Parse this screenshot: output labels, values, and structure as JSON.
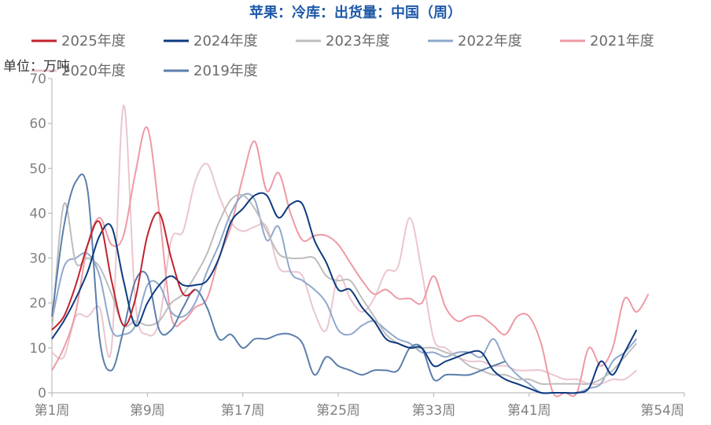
{
  "chart_data": {
    "type": "line",
    "title": "苹果：冷库：出货量：中国（周）",
    "title_color": "#1f5aa8",
    "unit_label": "单位：万吨",
    "ylim": [
      0,
      70
    ],
    "yticks": [
      0,
      10,
      20,
      30,
      40,
      50,
      60,
      70
    ],
    "xlim": [
      1,
      54
    ],
    "xticks": [
      {
        "week": 1,
        "label": "第1周"
      },
      {
        "week": 9,
        "label": "第9周"
      },
      {
        "week": 17,
        "label": "第17周"
      },
      {
        "week": 25,
        "label": "第25周"
      },
      {
        "week": 33,
        "label": "第33周"
      },
      {
        "week": 41,
        "label": "第41周"
      },
      {
        "week": 54,
        "label": "第54周"
      }
    ],
    "grid": false,
    "legend_position": "top",
    "series": [
      {
        "name": "2025年度",
        "color": "#c0222c",
        "values": [
          14,
          17,
          24,
          33,
          38,
          25,
          15,
          21,
          35,
          40,
          30,
          22,
          23
        ]
      },
      {
        "name": "2024年度",
        "color": "#0d3a7f",
        "values": [
          12,
          16,
          21,
          27,
          35,
          37,
          25,
          15,
          20,
          24,
          26,
          24,
          24,
          25,
          30,
          38,
          41,
          44,
          44,
          39,
          42,
          42,
          34,
          29,
          23,
          23,
          19,
          16,
          12,
          11,
          10,
          10,
          6,
          7,
          8,
          9,
          9,
          5,
          3,
          2,
          1,
          0,
          0,
          0,
          0,
          1,
          7,
          4,
          9,
          14
        ]
      },
      {
        "name": "2023年度",
        "color": "#bdbdbd",
        "values": [
          14,
          42,
          29,
          30,
          28,
          22,
          15,
          16,
          15,
          16,
          20,
          22,
          26,
          31,
          38,
          43,
          44,
          41,
          36,
          31,
          30,
          30,
          30,
          26,
          25,
          25,
          21,
          17,
          13,
          11,
          10,
          10,
          10,
          9,
          8,
          6,
          5,
          4,
          4,
          3,
          3,
          2,
          2,
          2,
          2,
          2,
          3,
          5,
          8,
          11
        ]
      },
      {
        "name": "2022年度",
        "color": "#8fa8cc",
        "values": [
          16,
          28,
          30,
          31,
          26,
          14,
          13,
          15,
          24,
          24,
          18,
          17,
          20,
          27,
          33,
          40,
          44,
          43,
          34,
          37,
          27,
          25,
          23,
          20,
          14,
          13,
          15,
          16,
          14,
          12,
          11,
          9,
          9,
          8,
          9,
          9,
          8,
          12,
          7,
          4,
          2,
          0,
          0,
          0,
          0,
          1,
          2,
          7,
          9,
          12
        ]
      },
      {
        "name": "2021年度",
        "color": "#ee9aa5",
        "values": [
          5,
          10,
          18,
          33,
          39,
          33,
          35,
          49,
          59,
          40,
          17,
          16,
          19,
          21,
          30,
          37,
          48,
          56,
          45,
          49,
          40,
          34,
          35,
          35,
          33,
          29,
          25,
          22,
          23,
          21,
          21,
          20,
          26,
          19,
          16,
          17,
          17,
          15,
          13,
          17,
          17,
          11,
          0,
          0,
          0,
          10,
          6,
          10,
          21,
          18,
          22
        ]
      },
      {
        "name": "2020年度",
        "color": "#ebc6cd",
        "values": [
          9,
          8,
          17,
          17,
          19,
          10,
          64,
          20,
          13,
          16,
          34,
          36,
          47,
          51,
          44,
          38,
          36,
          37,
          37,
          28,
          27,
          26,
          18,
          14,
          26,
          21,
          18,
          21,
          27,
          28,
          39,
          27,
          12,
          10,
          8,
          7,
          7,
          6,
          6,
          5,
          5,
          5,
          4,
          3,
          3,
          2,
          2,
          3,
          3,
          5
        ]
      },
      {
        "name": "2019年度",
        "color": "#5b7eac",
        "values": [
          17,
          37,
          47,
          45,
          12,
          5,
          14,
          25,
          26,
          14,
          14,
          19,
          23,
          19,
          12,
          13,
          10,
          12,
          12,
          13,
          13,
          11,
          4,
          8,
          6,
          5,
          4,
          5,
          5,
          5,
          10,
          10,
          3,
          4,
          4,
          4,
          5,
          6,
          7
        ]
      }
    ]
  }
}
